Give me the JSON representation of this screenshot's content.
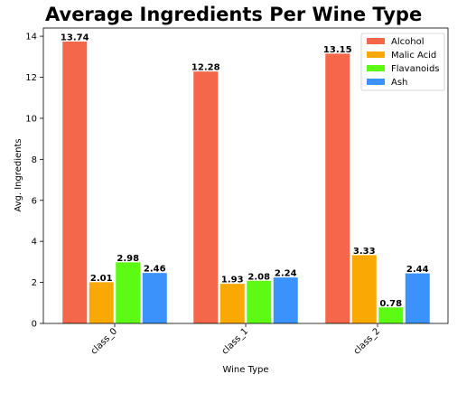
{
  "chart_data": {
    "type": "bar",
    "title": "Average Ingredients Per Wine Type",
    "xlabel": "Wine Type",
    "ylabel": "Avg. Ingredients",
    "categories": [
      "class_0",
      "class_1",
      "class_2"
    ],
    "series": [
      {
        "name": "Alcohol",
        "color": "#f4674b",
        "values": [
          13.74,
          12.28,
          13.15
        ],
        "labels": [
          "13.74",
          "12.28",
          "13.15"
        ]
      },
      {
        "name": "Malic Acid",
        "color": "#f9a804",
        "values": [
          2.01,
          1.93,
          3.33
        ],
        "labels": [
          "2.01",
          "1.93",
          "3.33"
        ]
      },
      {
        "name": "Flavanoids",
        "color": "#5dfb13",
        "values": [
          2.98,
          2.08,
          0.78
        ],
        "labels": [
          "2.98",
          "2.08",
          "0.78"
        ]
      },
      {
        "name": "Ash",
        "color": "#3b92fb",
        "values": [
          2.46,
          2.24,
          2.44
        ],
        "labels": [
          "2.46",
          "2.24",
          "2.44"
        ]
      }
    ],
    "ylim": [
      0,
      14.4
    ],
    "yticks": [
      "0",
      "2",
      "4",
      "6",
      "8",
      "10",
      "12",
      "14"
    ],
    "grid": false,
    "legend_position": "top-right",
    "xtick_rotation": "45 degrees"
  }
}
